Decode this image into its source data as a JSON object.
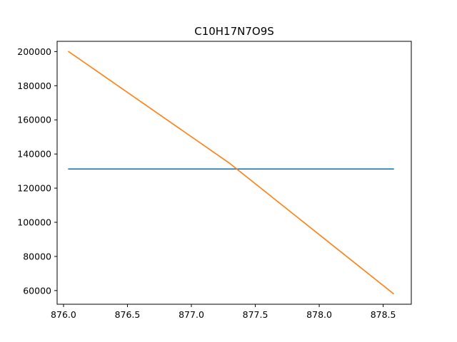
{
  "chart_data": {
    "type": "line",
    "title": "C10H17N7O9S",
    "xlabel": "",
    "ylabel": "",
    "xlim": [
      875.95,
      878.72
    ],
    "ylim": [
      52000,
      206000
    ],
    "xticks": [
      876.0,
      876.5,
      877.0,
      877.5,
      878.0,
      878.5
    ],
    "xtick_labels": [
      "876.0",
      "876.5",
      "877.0",
      "877.5",
      "878.0",
      "878.5"
    ],
    "yticks": [
      60000,
      80000,
      100000,
      120000,
      140000,
      160000,
      180000,
      200000
    ],
    "ytick_labels": [
      "60000",
      "80000",
      "100000",
      "120000",
      "140000",
      "160000",
      "180000",
      "200000"
    ],
    "grid": false,
    "series": [
      {
        "color": "#1f77b4",
        "x": [
          876.04,
          878.58
        ],
        "y": [
          131200,
          131200
        ]
      },
      {
        "color": "#ff7f0e",
        "x": [
          876.04,
          877.3,
          878.58
        ],
        "y": [
          200000,
          134500,
          58200
        ]
      }
    ]
  }
}
